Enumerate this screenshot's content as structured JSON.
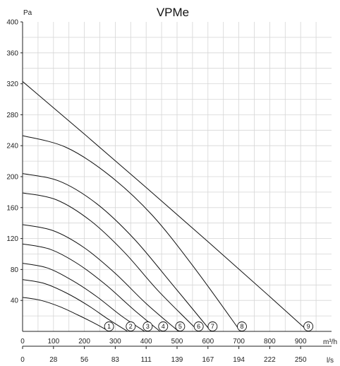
{
  "chart_data": {
    "type": "line",
    "title": "VPMe",
    "y_unit": "Pa",
    "x_unit": "m³/h",
    "x2_unit": "l/s",
    "xlim": [
      0,
      1000
    ],
    "ylim": [
      0,
      400
    ],
    "grid": true,
    "x_ticks": [
      "0",
      "100",
      "200",
      "300",
      "400",
      "500",
      "600",
      "700",
      "800",
      "900"
    ],
    "x_tick_values": [
      0,
      100,
      200,
      300,
      400,
      500,
      600,
      700,
      800,
      900
    ],
    "x2_ticks": [
      "0",
      "28",
      "56",
      "83",
      "111",
      "139",
      "167",
      "194",
      "222",
      "250"
    ],
    "y_ticks": [
      "40",
      "80",
      "120",
      "160",
      "200",
      "240",
      "280",
      "320",
      "360",
      "400"
    ],
    "y_tick_values": [
      40,
      80,
      120,
      160,
      200,
      240,
      280,
      320,
      360,
      400
    ],
    "series": [
      {
        "label": "1",
        "shape": "curve",
        "x": [
          0,
          60,
          120,
          180,
          240,
          280
        ],
        "y": [
          44,
          40,
          32,
          21,
          9,
          0
        ],
        "marker_x": 280
      },
      {
        "label": "2",
        "shape": "curve",
        "x": [
          0,
          70,
          140,
          210,
          280,
          340
        ],
        "y": [
          67,
          62,
          50,
          34,
          15,
          0
        ],
        "marker_x": 350
      },
      {
        "label": "3",
        "shape": "curve",
        "x": [
          0,
          80,
          160,
          240,
          320,
          395
        ],
        "y": [
          88,
          82,
          66,
          45,
          20,
          0
        ],
        "marker_x": 405
      },
      {
        "label": "4",
        "shape": "curve",
        "x": [
          0,
          90,
          180,
          270,
          360,
          445
        ],
        "y": [
          113,
          106,
          87,
          60,
          28,
          0
        ],
        "marker_x": 455
      },
      {
        "label": "5",
        "shape": "curve",
        "x": [
          0,
          100,
          200,
          300,
          400,
          505
        ],
        "y": [
          138,
          130,
          108,
          75,
          36,
          0
        ],
        "marker_x": 510
      },
      {
        "label": "6",
        "shape": "curve",
        "x": [
          0,
          110,
          220,
          330,
          440,
          570
        ],
        "y": [
          179,
          170,
          143,
          102,
          52,
          0
        ],
        "marker_x": 570
      },
      {
        "label": "7",
        "shape": "curve",
        "x": [
          0,
          120,
          240,
          360,
          480,
          610
        ],
        "y": [
          204,
          194,
          165,
          120,
          63,
          0
        ],
        "marker_x": 615
      },
      {
        "label": "8",
        "shape": "curve",
        "x": [
          0,
          140,
          280,
          420,
          560,
          705
        ],
        "y": [
          253,
          238,
          202,
          150,
          80,
          0
        ],
        "marker_x": 710
      },
      {
        "label": "9",
        "shape": "line",
        "x": [
          0,
          200,
          400,
          600,
          800,
          925
        ],
        "y": [
          323,
          255,
          186,
          116,
          45,
          0
        ],
        "marker_x": 925
      }
    ]
  }
}
